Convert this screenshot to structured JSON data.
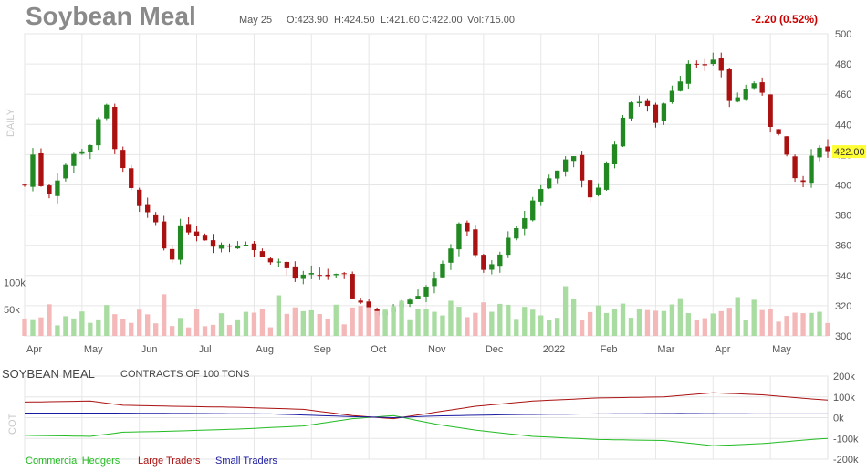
{
  "header": {
    "title": "Soybean Meal",
    "date": "May 25",
    "open": "O:423.90",
    "high": "H:424.50",
    "low": "L:421.60",
    "close": "C:422.00",
    "volume": "Vol:715.00",
    "change": "-2.20 (0.52%)",
    "period_label": "DAILY",
    "last_price_tag": "422.00"
  },
  "colors": {
    "up": "#228822",
    "down": "#aa1111",
    "vol_up": "#a8dca0",
    "vol_down": "#f4b8b8",
    "grid": "#e6e6e6",
    "price_tag": "#ffff33",
    "commercial": "#22bb22",
    "large": "#aa1111",
    "small": "#1a1aa0"
  },
  "chart_data": [
    {
      "type": "candlestick",
      "title": "Soybean Meal",
      "x": [
        "Apr",
        "May",
        "Jun",
        "Jul",
        "Aug",
        "Sep",
        "Oct",
        "Nov",
        "Dec",
        "2022",
        "Feb",
        "Mar",
        "Apr",
        "May"
      ],
      "ylim": [
        300,
        500
      ],
      "yticks": [
        "500",
        "480",
        "460",
        "440",
        "420",
        "400",
        "380",
        "360",
        "340",
        "320",
        "300"
      ],
      "anchors": [
        {
          "x": 0,
          "price": 400
        },
        {
          "x": 0.5,
          "price": 430
        },
        {
          "x": 2,
          "price": 400
        },
        {
          "x": 3,
          "price": 395
        },
        {
          "x": 5.5,
          "price": 418
        },
        {
          "x": 7.5,
          "price": 425
        },
        {
          "x": 8.3,
          "price": 428
        },
        {
          "x": 9.3,
          "price": 448
        },
        {
          "x": 10,
          "price": 452
        },
        {
          "x": 11.2,
          "price": 420
        },
        {
          "x": 12.7,
          "price": 400
        },
        {
          "x": 14,
          "price": 385
        },
        {
          "x": 16,
          "price": 375
        },
        {
          "x": 17.5,
          "price": 350
        },
        {
          "x": 18.5,
          "price": 355
        },
        {
          "x": 19.3,
          "price": 381
        },
        {
          "x": 20,
          "price": 370
        },
        {
          "x": 21.5,
          "price": 366
        },
        {
          "x": 23,
          "price": 361
        },
        {
          "x": 25,
          "price": 360
        },
        {
          "x": 27,
          "price": 362
        },
        {
          "x": 29,
          "price": 352
        },
        {
          "x": 31.5,
          "price": 348
        },
        {
          "x": 33,
          "price": 338
        },
        {
          "x": 35,
          "price": 340
        },
        {
          "x": 37,
          "price": 340
        },
        {
          "x": 39,
          "price": 339
        },
        {
          "x": 40,
          "price": 326
        },
        {
          "x": 42,
          "price": 318
        },
        {
          "x": 43.5,
          "price": 312
        },
        {
          "x": 45.5,
          "price": 322
        },
        {
          "x": 48,
          "price": 328
        },
        {
          "x": 50,
          "price": 339
        },
        {
          "x": 51,
          "price": 346
        },
        {
          "x": 52.2,
          "price": 362
        },
        {
          "x": 53,
          "price": 375
        },
        {
          "x": 54,
          "price": 368
        },
        {
          "x": 55.5,
          "price": 345
        },
        {
          "x": 56.5,
          "price": 342
        },
        {
          "x": 58.5,
          "price": 360
        },
        {
          "x": 60.5,
          "price": 373
        },
        {
          "x": 62.5,
          "price": 395
        },
        {
          "x": 64.5,
          "price": 407
        },
        {
          "x": 65.5,
          "price": 412
        },
        {
          "x": 66.5,
          "price": 425
        },
        {
          "x": 67.5,
          "price": 410
        },
        {
          "x": 68.5,
          "price": 393
        },
        {
          "x": 69.5,
          "price": 392
        },
        {
          "x": 70.5,
          "price": 406
        },
        {
          "x": 72.5,
          "price": 436
        },
        {
          "x": 74,
          "price": 456
        },
        {
          "x": 75.5,
          "price": 455
        },
        {
          "x": 77,
          "price": 442
        },
        {
          "x": 78.5,
          "price": 460
        },
        {
          "x": 80,
          "price": 470
        },
        {
          "x": 81,
          "price": 481
        },
        {
          "x": 82,
          "price": 482
        },
        {
          "x": 83.5,
          "price": 476
        },
        {
          "x": 84.5,
          "price": 486
        },
        {
          "x": 85.3,
          "price": 470
        },
        {
          "x": 86.3,
          "price": 450
        },
        {
          "x": 87.5,
          "price": 463
        },
        {
          "x": 88.8,
          "price": 466
        },
        {
          "x": 90,
          "price": 462
        },
        {
          "x": 91,
          "price": 440
        },
        {
          "x": 92,
          "price": 433
        },
        {
          "x": 93,
          "price": 418
        },
        {
          "x": 94.5,
          "price": 397
        },
        {
          "x": 95.5,
          "price": 407
        },
        {
          "x": 96.5,
          "price": 428
        },
        {
          "x": 97.5,
          "price": 425
        },
        {
          "x": 98,
          "price": 422
        }
      ]
    },
    {
      "type": "bar",
      "title": "Volume",
      "yticks": [
        "100k",
        "50k"
      ],
      "ylim": [
        0,
        120000
      ]
    },
    {
      "type": "line",
      "title": "SOYBEAN MEAL",
      "subtitle": "CONTRACTS OF 100 TONS",
      "ylim": [
        -200000,
        200000
      ],
      "yticks": [
        "200k",
        "100k",
        "0k",
        "-100k",
        "-200k"
      ],
      "series": [
        {
          "name": "Commercial Hedgers",
          "anchors": [
            {
              "x": 0,
              "v": -85000
            },
            {
              "x": 8,
              "v": -90000
            },
            {
              "x": 12,
              "v": -70000
            },
            {
              "x": 18,
              "v": -65000
            },
            {
              "x": 26,
              "v": -55000
            },
            {
              "x": 34,
              "v": -40000
            },
            {
              "x": 40,
              "v": -5000
            },
            {
              "x": 45,
              "v": 10000
            },
            {
              "x": 50,
              "v": -30000
            },
            {
              "x": 55,
              "v": -60000
            },
            {
              "x": 62,
              "v": -90000
            },
            {
              "x": 70,
              "v": -105000
            },
            {
              "x": 78,
              "v": -110000
            },
            {
              "x": 84,
              "v": -135000
            },
            {
              "x": 90,
              "v": -125000
            },
            {
              "x": 96,
              "v": -105000
            },
            {
              "x": 98,
              "v": -100000
            }
          ]
        },
        {
          "name": "Large Traders",
          "anchors": [
            {
              "x": 0,
              "v": 75000
            },
            {
              "x": 8,
              "v": 80000
            },
            {
              "x": 12,
              "v": 60000
            },
            {
              "x": 18,
              "v": 55000
            },
            {
              "x": 26,
              "v": 50000
            },
            {
              "x": 34,
              "v": 40000
            },
            {
              "x": 40,
              "v": 10000
            },
            {
              "x": 45,
              "v": -5000
            },
            {
              "x": 50,
              "v": 25000
            },
            {
              "x": 55,
              "v": 55000
            },
            {
              "x": 62,
              "v": 80000
            },
            {
              "x": 70,
              "v": 95000
            },
            {
              "x": 78,
              "v": 100000
            },
            {
              "x": 84,
              "v": 120000
            },
            {
              "x": 90,
              "v": 110000
            },
            {
              "x": 96,
              "v": 90000
            },
            {
              "x": 98,
              "v": 85000
            }
          ]
        },
        {
          "name": "Small Traders",
          "anchors": [
            {
              "x": 0,
              "v": 22000
            },
            {
              "x": 10,
              "v": 22000
            },
            {
              "x": 20,
              "v": 20000
            },
            {
              "x": 30,
              "v": 18000
            },
            {
              "x": 40,
              "v": 5000
            },
            {
              "x": 45,
              "v": 0
            },
            {
              "x": 50,
              "v": 8000
            },
            {
              "x": 60,
              "v": 15000
            },
            {
              "x": 70,
              "v": 18000
            },
            {
              "x": 80,
              "v": 20000
            },
            {
              "x": 90,
              "v": 18000
            },
            {
              "x": 98,
              "v": 18000
            }
          ]
        }
      ]
    }
  ],
  "cot": {
    "label": "COT",
    "title": "SOYBEAN MEAL",
    "subtitle": "CONTRACTS OF 100 TONS",
    "legend": [
      "Commercial Hedgers",
      "Large Traders",
      "Small Traders"
    ]
  }
}
